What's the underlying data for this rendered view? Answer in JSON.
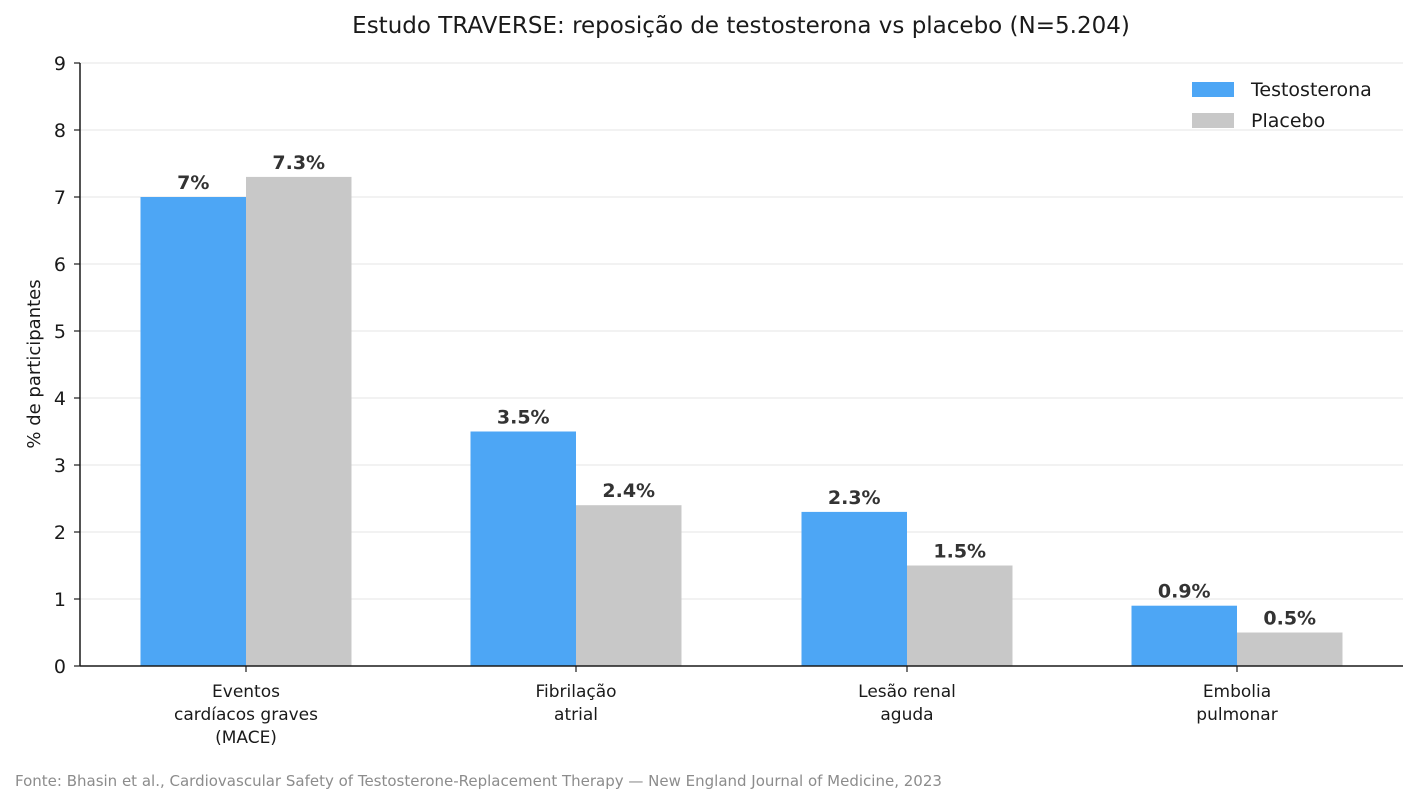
{
  "source_note": "Fonte: Bhasin et al., Cardiovascular Safety of Testosterone-Replacement Therapy — New England Journal of Medicine, 2023",
  "chart_data": {
    "type": "bar",
    "title": "Estudo TRAVERSE: reposição de testosterona vs placebo (N=5.204)",
    "xlabel": "",
    "ylabel": "% de participantes",
    "ylim": [
      0,
      9
    ],
    "yticks": [
      "0",
      "1",
      "2",
      "3",
      "4",
      "5",
      "6",
      "7",
      "8",
      "9"
    ],
    "grid": "horizontal",
    "legend_position": "top-right",
    "categories": [
      [
        "Eventos",
        "cardíacos graves",
        "(MACE)"
      ],
      [
        "Fibrilação",
        "atrial"
      ],
      [
        "Lesão renal",
        "aguda"
      ],
      [
        "Embolia",
        "pulmonar"
      ]
    ],
    "series": [
      {
        "name": "Testosterona",
        "color": "#4da6f5",
        "values": [
          7.0,
          3.5,
          2.3,
          0.9
        ],
        "labels": [
          "7%",
          "3.5%",
          "2.3%",
          "0.9%"
        ]
      },
      {
        "name": "Placebo",
        "color": "#c8c8c8",
        "values": [
          7.3,
          2.4,
          1.5,
          0.5
        ],
        "labels": [
          "7.3%",
          "2.4%",
          "1.5%",
          "0.5%"
        ]
      }
    ]
  }
}
